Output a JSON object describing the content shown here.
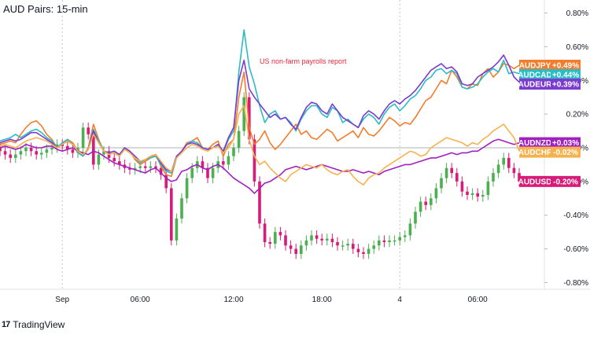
{
  "header": {
    "title": "AUD Pairs: 15-min"
  },
  "footer": {
    "brand": "TradingView"
  },
  "chart_data": {
    "type": "line",
    "annotations": [
      "US non-farm payrolls report"
    ],
    "x_ticks": [
      "Sep",
      "06:00",
      "12:00",
      "18:00",
      "4",
      "06:00"
    ],
    "x": [
      0,
      1,
      2,
      3,
      4,
      5,
      6,
      7,
      8,
      9,
      10,
      11,
      12,
      13,
      14,
      15,
      16,
      17,
      18,
      19,
      20,
      21,
      22,
      23,
      24,
      25,
      26,
      27,
      28,
      29,
      30,
      31,
      32,
      33,
      34,
      35,
      36,
      37,
      38,
      39,
      40,
      41,
      42,
      43,
      44,
      45,
      46,
      47,
      48,
      49,
      50,
      51,
      52,
      53,
      54,
      55,
      56,
      57,
      58,
      59,
      60,
      61,
      62,
      63,
      64,
      65,
      66,
      67,
      68,
      69,
      70,
      71,
      72,
      73,
      74,
      75,
      76,
      77,
      78,
      79,
      80,
      81,
      82,
      83,
      84,
      85,
      86,
      87,
      88,
      89,
      90,
      91,
      92,
      93,
      94,
      95,
      96,
      97,
      98,
      99,
      100
    ],
    "y_ticks": [
      "0.80%",
      "0.60%",
      "0.40%",
      "0.20%",
      "0.00%",
      "-0.20%",
      "-0.40%",
      "-0.60%",
      "-0.80%"
    ],
    "ylim": [
      -0.84,
      0.84
    ],
    "zero_line": 0.0,
    "series": [
      {
        "name": "AUDJPY",
        "badge": "+0.49%",
        "color": "#f57c2a",
        "values": [
          0.02,
          0.03,
          0.04,
          0.03,
          0.08,
          0.12,
          0.15,
          0.16,
          0.13,
          0.08,
          0.05,
          0.0,
          0.02,
          0.05,
          0.03,
          -0.02,
          -0.05,
          0.0,
          0.14,
          0.05,
          -0.02,
          -0.04,
          -0.03,
          -0.05,
          0.0,
          -0.02,
          -0.07,
          -0.1,
          -0.08,
          -0.06,
          -0.04,
          -0.11,
          -0.16,
          -0.17,
          -0.06,
          -0.02,
          0.03,
          0.04,
          0.06,
          0.0,
          -0.01,
          0.02,
          0.04,
          -0.05,
          0.02,
          0.05,
          0.3,
          0.45,
          0.12,
          0.02,
          0.05,
          0.1,
          0.03,
          -0.01,
          0.02,
          0.06,
          0.1,
          0.14,
          0.08,
          0.1,
          0.06,
          0.05,
          0.08,
          0.11,
          0.09,
          0.04,
          0.06,
          0.08,
          0.1,
          0.06,
          0.12,
          0.08,
          0.07,
          0.1,
          0.14,
          0.18,
          0.16,
          0.13,
          0.15,
          0.14,
          0.18,
          0.23,
          0.28,
          0.3,
          0.35,
          0.4,
          0.38,
          0.46,
          0.42,
          0.36,
          0.35,
          0.38,
          0.37,
          0.44,
          0.47,
          0.42,
          0.45,
          0.5,
          0.49,
          0.47,
          0.49
        ]
      },
      {
        "name": "AUDCAD",
        "badge": "+0.44%",
        "color": "#2bbcc4",
        "values": [
          0.04,
          0.05,
          0.06,
          0.08,
          0.06,
          0.08,
          0.1,
          0.11,
          0.09,
          0.06,
          0.04,
          0.0,
          0.03,
          0.05,
          0.02,
          -0.03,
          -0.05,
          -0.01,
          0.11,
          0.04,
          -0.02,
          -0.03,
          -0.02,
          -0.04,
          0.0,
          -0.02,
          -0.06,
          -0.09,
          -0.07,
          -0.06,
          -0.05,
          -0.1,
          -0.14,
          -0.15,
          -0.06,
          -0.02,
          0.02,
          0.04,
          0.03,
          0.0,
          -0.01,
          0.0,
          0.02,
          -0.03,
          0.05,
          0.1,
          0.45,
          0.7,
          0.48,
          0.38,
          0.25,
          0.15,
          0.2,
          0.22,
          0.17,
          0.18,
          0.15,
          0.1,
          0.17,
          0.22,
          0.25,
          0.25,
          0.2,
          0.18,
          0.24,
          0.22,
          0.15,
          0.17,
          0.14,
          0.12,
          0.17,
          0.2,
          0.18,
          0.14,
          0.2,
          0.24,
          0.26,
          0.22,
          0.25,
          0.29,
          0.31,
          0.35,
          0.4,
          0.42,
          0.46,
          0.47,
          0.44,
          0.46,
          0.44,
          0.36,
          0.35,
          0.36,
          0.38,
          0.42,
          0.45,
          0.47,
          0.45,
          0.52,
          0.44,
          0.45,
          0.44
        ]
      },
      {
        "name": "AUDEUR",
        "badge": "+0.39%",
        "color": "#7b3bd1",
        "values": [
          0.03,
          0.04,
          0.05,
          0.04,
          0.05,
          0.07,
          0.09,
          0.09,
          0.07,
          0.05,
          0.03,
          0.0,
          0.02,
          0.04,
          0.02,
          -0.02,
          -0.04,
          -0.01,
          0.1,
          0.03,
          -0.02,
          -0.03,
          -0.02,
          -0.04,
          0.0,
          -0.02,
          -0.05,
          -0.08,
          -0.07,
          -0.05,
          -0.04,
          -0.09,
          -0.13,
          -0.14,
          -0.05,
          -0.02,
          0.02,
          0.03,
          0.02,
          0.0,
          -0.01,
          0.0,
          0.02,
          -0.02,
          0.06,
          0.12,
          0.4,
          0.52,
          0.35,
          0.3,
          0.26,
          0.22,
          0.18,
          0.2,
          0.17,
          0.18,
          0.14,
          0.11,
          0.18,
          0.24,
          0.27,
          0.26,
          0.22,
          0.2,
          0.26,
          0.22,
          0.18,
          0.16,
          0.14,
          0.12,
          0.19,
          0.22,
          0.2,
          0.17,
          0.22,
          0.26,
          0.28,
          0.26,
          0.29,
          0.31,
          0.34,
          0.38,
          0.42,
          0.46,
          0.48,
          0.5,
          0.47,
          0.48,
          0.45,
          0.38,
          0.37,
          0.38,
          0.42,
          0.44,
          0.46,
          0.48,
          0.51,
          0.55,
          0.49,
          0.42,
          0.39
        ]
      },
      {
        "name": "AUDNZD",
        "badge": "+0.03%",
        "color": "#a020c0",
        "values": [
          0.0,
          0.01,
          0.0,
          -0.01,
          0.0,
          0.02,
          0.01,
          0.0,
          0.0,
          0.01,
          0.01,
          -0.01,
          -0.02,
          -0.01,
          0.0,
          -0.02,
          -0.03,
          -0.04,
          -0.02,
          -0.03,
          -0.05,
          -0.07,
          -0.09,
          -0.1,
          -0.11,
          -0.12,
          -0.13,
          -0.14,
          -0.15,
          -0.13,
          -0.12,
          -0.15,
          -0.18,
          -0.2,
          -0.19,
          -0.14,
          -0.13,
          -0.11,
          -0.1,
          -0.12,
          -0.13,
          -0.11,
          -0.1,
          -0.12,
          -0.15,
          -0.18,
          -0.2,
          -0.22,
          -0.24,
          -0.27,
          -0.24,
          -0.21,
          -0.2,
          -0.18,
          -0.16,
          -0.13,
          -0.12,
          -0.11,
          -0.12,
          -0.13,
          -0.12,
          -0.11,
          -0.1,
          -0.11,
          -0.12,
          -0.13,
          -0.14,
          -0.14,
          -0.13,
          -0.14,
          -0.15,
          -0.14,
          -0.15,
          -0.16,
          -0.14,
          -0.13,
          -0.12,
          -0.11,
          -0.1,
          -0.1,
          -0.09,
          -0.08,
          -0.07,
          -0.06,
          -0.06,
          -0.05,
          -0.04,
          -0.03,
          -0.04,
          -0.03,
          -0.03,
          -0.02,
          -0.02,
          0.0,
          0.02,
          0.04,
          0.05,
          0.04,
          0.03,
          0.02,
          0.03
        ]
      },
      {
        "name": "AUDCHF",
        "badge": "-0.02%",
        "color": "#f7b24d",
        "values": [
          0.01,
          0.02,
          0.01,
          0.0,
          0.02,
          0.04,
          0.05,
          0.06,
          0.05,
          0.04,
          0.02,
          0.0,
          0.02,
          0.04,
          0.02,
          -0.02,
          -0.04,
          -0.01,
          0.08,
          0.03,
          -0.02,
          -0.04,
          -0.03,
          -0.05,
          -0.01,
          -0.03,
          -0.06,
          -0.08,
          -0.07,
          -0.05,
          -0.04,
          -0.08,
          -0.12,
          -0.14,
          -0.06,
          -0.03,
          0.0,
          0.02,
          0.01,
          -0.01,
          -0.02,
          0.0,
          0.01,
          -0.03,
          0.0,
          0.05,
          0.2,
          0.25,
          0.05,
          -0.05,
          -0.1,
          -0.08,
          -0.12,
          -0.15,
          -0.18,
          -0.2,
          -0.16,
          -0.14,
          -0.12,
          -0.1,
          -0.11,
          -0.12,
          -0.1,
          -0.13,
          -0.15,
          -0.16,
          -0.14,
          -0.13,
          -0.17,
          -0.2,
          -0.22,
          -0.18,
          -0.16,
          -0.15,
          -0.12,
          -0.1,
          -0.08,
          -0.06,
          -0.04,
          -0.02,
          -0.03,
          -0.05,
          -0.04,
          0.0,
          0.02,
          0.04,
          0.06,
          0.05,
          0.04,
          0.03,
          0.01,
          0.03,
          0.02,
          0.05,
          0.07,
          0.1,
          0.12,
          0.14,
          0.1,
          0.06,
          -0.02
        ]
      }
    ],
    "candles": {
      "name": "AUDUSD",
      "badge": "-0.20%",
      "up_color": "#4caf50",
      "down_color": "#d81b78",
      "close": [
        -0.02,
        -0.04,
        -0.06,
        -0.04,
        -0.02,
        0.0,
        -0.02,
        -0.04,
        -0.03,
        -0.01,
        0.0,
        0.02,
        0.01,
        -0.01,
        -0.03,
        0.0,
        0.12,
        0.08,
        -0.1,
        -0.04,
        -0.02,
        -0.06,
        -0.08,
        -0.1,
        -0.12,
        -0.13,
        -0.12,
        -0.11,
        -0.12,
        -0.11,
        -0.12,
        -0.16,
        -0.24,
        -0.55,
        -0.42,
        -0.3,
        -0.18,
        -0.12,
        -0.08,
        -0.12,
        -0.18,
        -0.12,
        -0.08,
        -0.1,
        -0.05,
        0.0,
        0.1,
        0.3,
        0.05,
        -0.2,
        -0.45,
        -0.56,
        -0.57,
        -0.5,
        -0.52,
        -0.58,
        -0.6,
        -0.63,
        -0.58,
        -0.55,
        -0.52,
        -0.54,
        -0.55,
        -0.54,
        -0.56,
        -0.58,
        -0.58,
        -0.57,
        -0.6,
        -0.62,
        -0.63,
        -0.6,
        -0.58,
        -0.55,
        -0.56,
        -0.55,
        -0.55,
        -0.53,
        -0.52,
        -0.45,
        -0.38,
        -0.32,
        -0.34,
        -0.3,
        -0.24,
        -0.18,
        -0.12,
        -0.15,
        -0.2,
        -0.26,
        -0.28,
        -0.27,
        -0.29,
        -0.28,
        -0.2,
        -0.15,
        -0.1,
        -0.06,
        -0.12,
        -0.15,
        -0.2
      ]
    }
  }
}
